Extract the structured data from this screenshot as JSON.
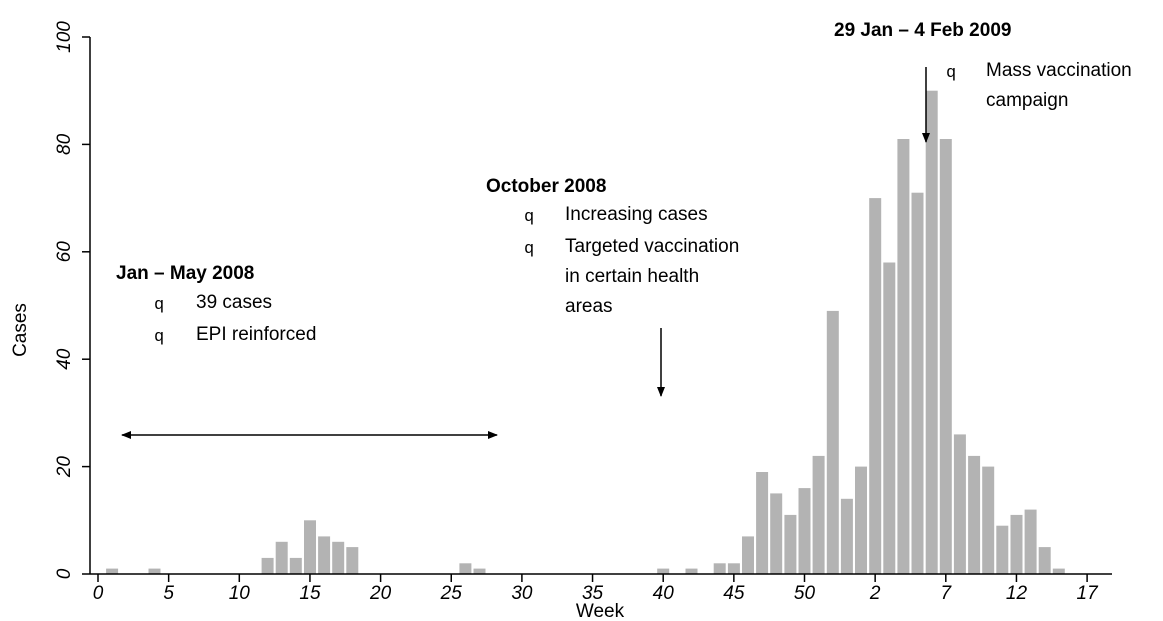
{
  "chart_data": {
    "type": "bar",
    "title": "",
    "xlabel": "Week",
    "ylabel": "Cases",
    "ylim": [
      0,
      100
    ],
    "yticks": [
      0,
      20,
      40,
      60,
      80,
      100
    ],
    "xtick_labels": [
      "0",
      "5",
      "10",
      "15",
      "20",
      "25",
      "30",
      "35",
      "40",
      "45",
      "50",
      "2",
      "7",
      "12",
      "17"
    ],
    "grid": false,
    "bar_color": "#b3b3b3",
    "series": [
      {
        "values": [
          0,
          1,
          0,
          0,
          1,
          0,
          0,
          0,
          0,
          0,
          0,
          0,
          3,
          6,
          3,
          10,
          7,
          6,
          5,
          0,
          0,
          0,
          0,
          0,
          0,
          0,
          2,
          1,
          0,
          0,
          0,
          0,
          0,
          0,
          0,
          0,
          0,
          0,
          0,
          0,
          1,
          0,
          1,
          0,
          2,
          2,
          7,
          19,
          15,
          11,
          16,
          22,
          49,
          14,
          20,
          70,
          58,
          81,
          71,
          90,
          81,
          26,
          22,
          20,
          9,
          11,
          12,
          5,
          1
        ]
      }
    ],
    "annotations": [
      {
        "title": "Jan – May 2008",
        "bullet": "q",
        "lines": [
          "39 cases",
          "EPI reinforced"
        ],
        "arrow": "double-horizontal"
      },
      {
        "title": "October 2008",
        "bullet": "q",
        "lines": [
          "Increasing cases",
          "Targeted vaccination",
          "in certain health",
          "areas"
        ],
        "arrow": "down"
      },
      {
        "title": "29 Jan – 4 Feb 2009",
        "bullet": "q",
        "lines": [
          "Mass vaccination",
          "campaign"
        ],
        "arrow": "down"
      }
    ]
  }
}
